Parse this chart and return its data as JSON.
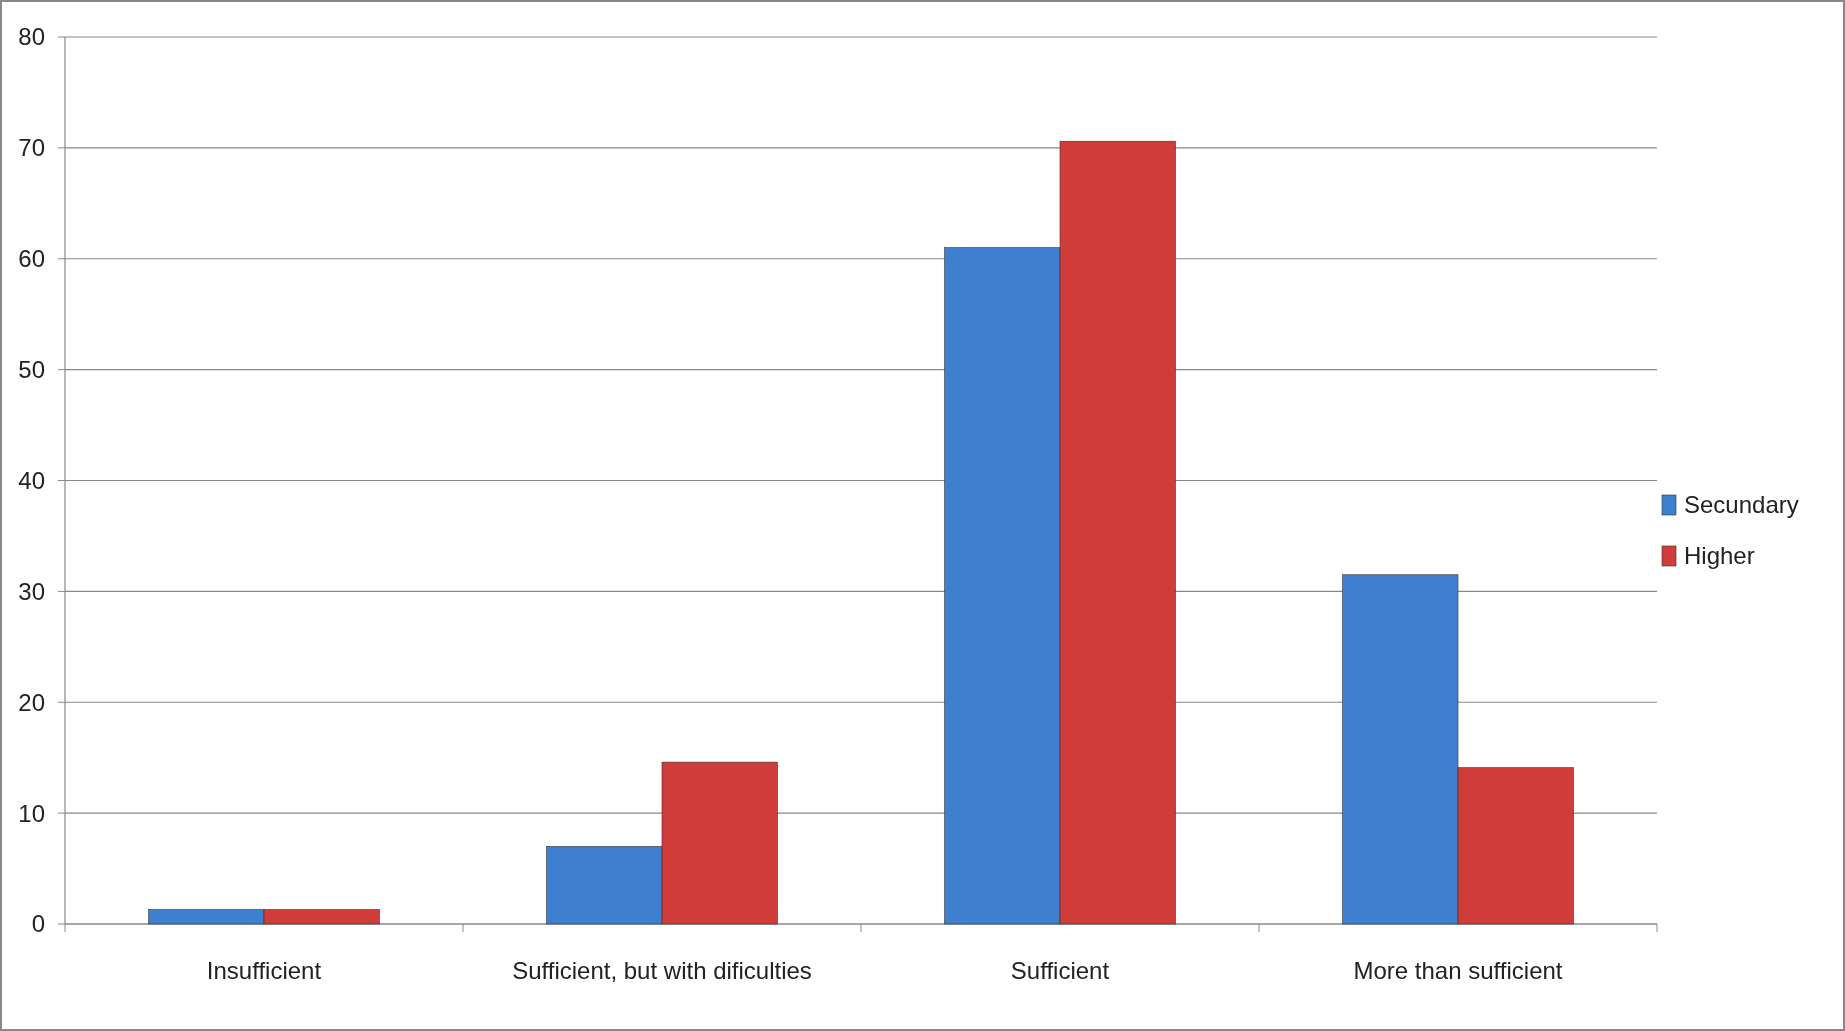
{
  "chart_data": {
    "type": "bar",
    "categories": [
      "Insufficient",
      "Sufficient, but with dificulties",
      "Sufficient",
      "More than sufficient"
    ],
    "series": [
      {
        "name": "Secundary",
        "color": "#3f7fd0",
        "values": [
          1.3,
          7.0,
          61.0,
          31.5
        ]
      },
      {
        "name": "Higher",
        "color": "#d03c3a",
        "values": [
          1.3,
          14.6,
          70.6,
          14.1
        ]
      }
    ],
    "ylim": [
      0,
      80
    ],
    "yticks": [
      0,
      10,
      20,
      30,
      40,
      50,
      60,
      70,
      80
    ],
    "grid": "y",
    "legend": "right"
  }
}
